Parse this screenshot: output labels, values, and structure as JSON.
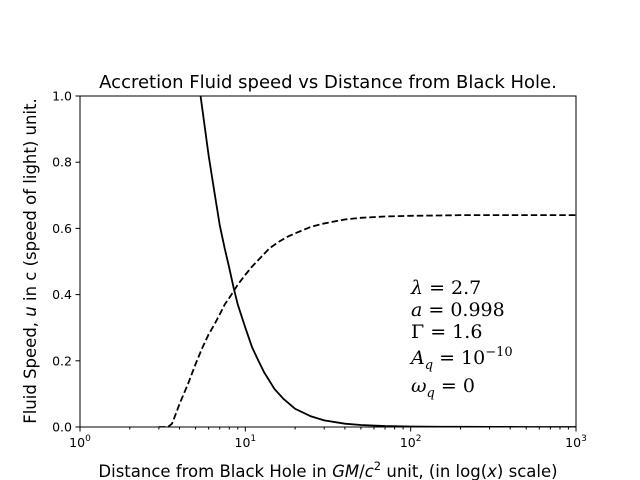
{
  "chart_data": {
    "type": "line",
    "title": "Accretion Fluid speed vs Distance from Black Hole.",
    "xlabel": {
      "pre": "Distance from Black Hole in ",
      "unit_italic": "GM",
      "unit_slash": "/",
      "unit_c": "c",
      "unit_exp": "2",
      "mid": " unit, (in log(",
      "var": "x",
      "post": ") scale)"
    },
    "ylabel": {
      "pre": "Fluid Speed, ",
      "var": "u",
      "post": " in c (speed of light) unit."
    },
    "xscale": "log",
    "xlim": [
      1,
      1000
    ],
    "ylim": [
      0,
      1.0
    ],
    "grid": false,
    "x_ticks": [
      {
        "value": 1,
        "base": "10",
        "exp": "0"
      },
      {
        "value": 10,
        "base": "10",
        "exp": "1"
      },
      {
        "value": 100,
        "base": "10",
        "exp": "2"
      },
      {
        "value": 1000,
        "base": "10",
        "exp": "3"
      }
    ],
    "y_ticks": [
      {
        "value": 0.0,
        "label": "0.0"
      },
      {
        "value": 0.2,
        "label": "0.2"
      },
      {
        "value": 0.4,
        "label": "0.4"
      },
      {
        "value": 0.6,
        "label": "0.6"
      },
      {
        "value": 0.8,
        "label": "0.8"
      },
      {
        "value": 1.0,
        "label": "1.0"
      }
    ],
    "series": [
      {
        "style": "solid",
        "x": [
          5.36,
          5.6,
          6.0,
          6.5,
          7.0,
          7.5,
          8.0,
          8.5,
          9,
          10,
          11,
          12,
          13,
          15,
          17,
          20,
          25,
          30,
          40,
          50,
          70,
          100,
          150,
          200,
          300,
          500,
          1000
        ],
        "y": [
          1.0,
          0.93,
          0.82,
          0.71,
          0.61,
          0.54,
          0.48,
          0.42,
          0.37,
          0.3,
          0.24,
          0.2,
          0.165,
          0.115,
          0.085,
          0.055,
          0.032,
          0.02,
          0.01,
          0.006,
          0.003,
          0.0015,
          0.0008,
          0.0005,
          0.0003,
          0.0001,
          0.0
        ]
      },
      {
        "style": "dashed",
        "x": [
          3.0,
          3.4,
          3.6,
          3.8,
          4,
          4.5,
          5,
          5.5,
          6,
          6.5,
          7,
          7.5,
          8,
          9,
          10,
          11,
          12,
          14,
          16,
          18,
          20,
          25,
          30,
          40,
          50,
          70,
          100,
          150,
          200,
          300,
          500,
          1000
        ],
        "y": [
          0.0,
          0.0,
          0.01,
          0.04,
          0.07,
          0.13,
          0.19,
          0.24,
          0.28,
          0.31,
          0.34,
          0.37,
          0.39,
          0.43,
          0.46,
          0.485,
          0.505,
          0.54,
          0.56,
          0.575,
          0.585,
          0.605,
          0.615,
          0.627,
          0.632,
          0.636,
          0.638,
          0.639,
          0.64,
          0.64,
          0.64,
          0.64
        ]
      }
    ],
    "annotation": {
      "lambda": {
        "sym": "λ",
        "rest": " = 2.7"
      },
      "a": {
        "sym": "a",
        "rest": " = 0.998"
      },
      "gamma": {
        "sym": "Γ",
        "rest": " = 1.6"
      },
      "aq": {
        "sym": "A",
        "sub": "q",
        "rest": " = 10",
        "exp": "−10"
      },
      "omega": {
        "sym": "ω",
        "sub": "q",
        "rest": " = 0"
      }
    }
  }
}
